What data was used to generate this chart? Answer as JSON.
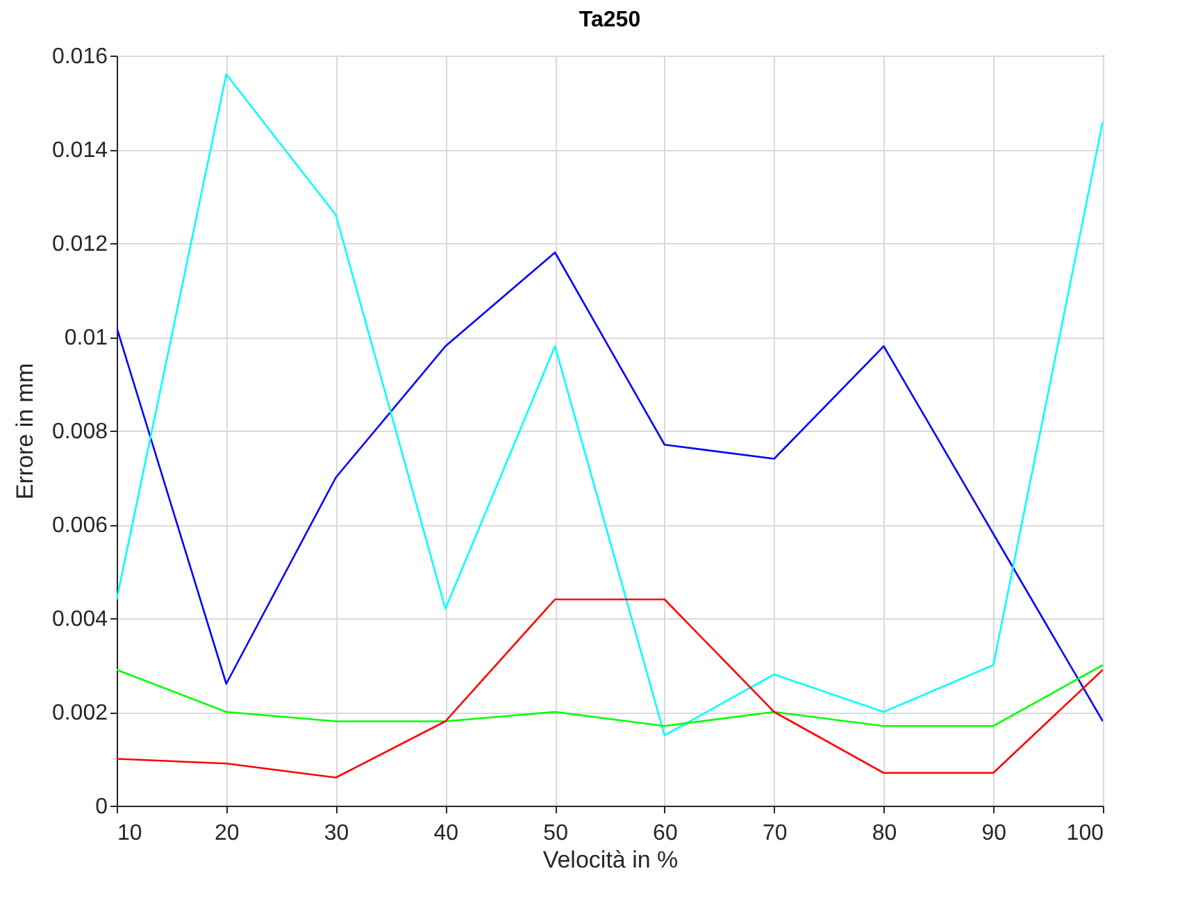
{
  "chart_data": {
    "type": "line",
    "title": "Ta250",
    "xlabel": "Velocità in %",
    "ylabel": "Errore in mm",
    "x": [
      10,
      20,
      30,
      40,
      50,
      60,
      70,
      80,
      90,
      100
    ],
    "series": [
      {
        "color": "#0000ff",
        "values": [
          0.0102,
          0.0026,
          0.007,
          0.0098,
          0.0118,
          0.0077,
          0.0074,
          0.0098,
          0.0058,
          0.0018
        ]
      },
      {
        "color": "#00ffff",
        "values": [
          0.0044,
          0.0156,
          0.0126,
          0.0042,
          0.0098,
          0.0015,
          0.0028,
          0.002,
          0.003,
          0.0146
        ]
      },
      {
        "color": "#00ff00",
        "values": [
          0.0029,
          0.002,
          0.0018,
          0.0018,
          0.002,
          0.0017,
          0.002,
          0.0017,
          0.0017,
          0.003
        ]
      },
      {
        "color": "#ff0000",
        "values": [
          0.001,
          0.0009,
          0.0006,
          0.0018,
          0.0044,
          0.0044,
          0.002,
          0.0007,
          0.0007,
          0.0029
        ]
      }
    ],
    "xlim": [
      10,
      100
    ],
    "xticks": [
      10,
      20,
      30,
      40,
      50,
      60,
      70,
      80,
      90,
      100
    ],
    "ylim": [
      0,
      0.016
    ],
    "yticks": [
      0,
      0.002,
      0.004,
      0.006,
      0.008,
      0.01,
      0.012,
      0.014,
      0.016
    ],
    "grid": true,
    "marker": "none",
    "line_style": "solid"
  }
}
